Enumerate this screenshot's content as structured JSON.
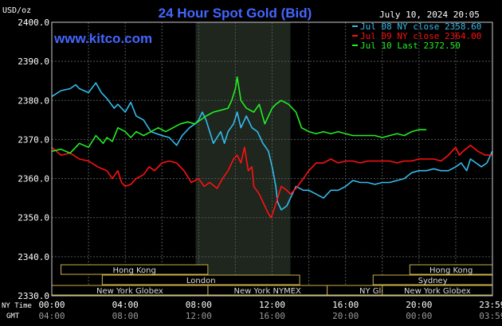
{
  "chart_data": {
    "type": "line",
    "title": "24 Hour Spot Gold (Bid)",
    "subtitle": "www.kitco.com",
    "timestamp": "July 10, 2024 20:05",
    "ylabel": "USD/oz",
    "ylim": [
      2330,
      2400
    ],
    "y_ticks": [
      "2330.0",
      "2340.0",
      "2350.0",
      "2360.0",
      "2370.0",
      "2380.0",
      "2390.0",
      "2400.0"
    ],
    "x_range": [
      0,
      24
    ],
    "ny_time_label": "NY Time",
    "gmt_label": "GMT",
    "x_ticks_ny": [
      "00:00",
      "04:00",
      "08:00",
      "12:00",
      "16:00",
      "20:00",
      "23:59"
    ],
    "x_ticks_gmt": [
      "04:00",
      "08:00",
      "12:00",
      "16:00",
      "20:00",
      "00:00",
      "03:59"
    ],
    "grid": true,
    "shaded_session": [
      7.833,
      13.0
    ],
    "legend_position": "top-right",
    "series": [
      {
        "name": "Jul 08 NY close 2358.60",
        "color": "#33bbee",
        "points": [
          [
            0,
            2381
          ],
          [
            0.5,
            2382.5
          ],
          [
            1,
            2383
          ],
          [
            1.3,
            2384
          ],
          [
            1.5,
            2383
          ],
          [
            2,
            2382
          ],
          [
            2.4,
            2384.5
          ],
          [
            2.7,
            2382
          ],
          [
            3,
            2380.5
          ],
          [
            3.4,
            2378
          ],
          [
            3.6,
            2379
          ],
          [
            4,
            2377
          ],
          [
            4.3,
            2379.5
          ],
          [
            4.6,
            2376
          ],
          [
            5,
            2375
          ],
          [
            5.4,
            2372
          ],
          [
            6,
            2371
          ],
          [
            6.4,
            2370.5
          ],
          [
            6.8,
            2368.5
          ],
          [
            7.1,
            2371
          ],
          [
            7.5,
            2373
          ],
          [
            7.8,
            2374
          ],
          [
            8,
            2375
          ],
          [
            8.2,
            2377
          ],
          [
            8.4,
            2375
          ],
          [
            8.6,
            2372
          ],
          [
            8.8,
            2369
          ],
          [
            9.2,
            2372
          ],
          [
            9.4,
            2369
          ],
          [
            9.6,
            2372
          ],
          [
            9.9,
            2374
          ],
          [
            10.1,
            2377
          ],
          [
            10.3,
            2373
          ],
          [
            10.6,
            2376
          ],
          [
            10.9,
            2373
          ],
          [
            11.2,
            2372
          ],
          [
            11.5,
            2369
          ],
          [
            11.8,
            2367
          ],
          [
            12,
            2363
          ],
          [
            12.2,
            2358
          ],
          [
            12.3,
            2354
          ],
          [
            12.5,
            2352
          ],
          [
            12.8,
            2353
          ],
          [
            13,
            2355
          ],
          [
            13.3,
            2358
          ],
          [
            13.7,
            2357
          ],
          [
            14,
            2357
          ],
          [
            14.4,
            2356
          ],
          [
            14.8,
            2355
          ],
          [
            15.2,
            2357
          ],
          [
            15.6,
            2357
          ],
          [
            16,
            2358
          ],
          [
            16.4,
            2359.5
          ],
          [
            16.8,
            2359
          ],
          [
            17.2,
            2359
          ],
          [
            17.6,
            2358.5
          ],
          [
            18,
            2359
          ],
          [
            18.4,
            2359
          ],
          [
            18.8,
            2359.5
          ],
          [
            19.2,
            2360
          ],
          [
            19.6,
            2361.5
          ],
          [
            20,
            2362
          ],
          [
            20.4,
            2362
          ],
          [
            20.8,
            2362.5
          ],
          [
            21.2,
            2362
          ],
          [
            21.6,
            2362
          ],
          [
            22,
            2363
          ],
          [
            22.3,
            2364
          ],
          [
            22.6,
            2362
          ],
          [
            22.8,
            2365
          ],
          [
            23.1,
            2364
          ],
          [
            23.4,
            2363
          ],
          [
            23.7,
            2364
          ],
          [
            23.99,
            2367
          ]
        ]
      },
      {
        "name": "Jul 09 NY close 2364.00",
        "color": "#ff1111",
        "points": [
          [
            0,
            2368
          ],
          [
            0.5,
            2366
          ],
          [
            1,
            2366.5
          ],
          [
            1.5,
            2365
          ],
          [
            2,
            2364.5
          ],
          [
            2.5,
            2363
          ],
          [
            3,
            2362
          ],
          [
            3.3,
            2360
          ],
          [
            3.6,
            2362
          ],
          [
            3.8,
            2359
          ],
          [
            4,
            2358
          ],
          [
            4.3,
            2358.5
          ],
          [
            4.6,
            2360
          ],
          [
            5,
            2361
          ],
          [
            5.3,
            2363
          ],
          [
            5.6,
            2362
          ],
          [
            6,
            2364
          ],
          [
            6.4,
            2364.5
          ],
          [
            6.8,
            2364
          ],
          [
            7.2,
            2362
          ],
          [
            7.6,
            2359
          ],
          [
            8,
            2360
          ],
          [
            8.3,
            2358
          ],
          [
            8.6,
            2359
          ],
          [
            9,
            2357.5
          ],
          [
            9.3,
            2360
          ],
          [
            9.6,
            2362
          ],
          [
            9.9,
            2365
          ],
          [
            10.1,
            2366
          ],
          [
            10.3,
            2364
          ],
          [
            10.5,
            2368
          ],
          [
            10.7,
            2362
          ],
          [
            10.9,
            2363
          ],
          [
            11,
            2358
          ],
          [
            11.3,
            2356
          ],
          [
            11.6,
            2353
          ],
          [
            11.8,
            2351
          ],
          [
            11.95,
            2350
          ],
          [
            12.1,
            2352
          ],
          [
            12.3,
            2355
          ],
          [
            12.5,
            2358
          ],
          [
            12.8,
            2357
          ],
          [
            13,
            2356
          ],
          [
            13.3,
            2357.5
          ],
          [
            13.7,
            2360
          ],
          [
            14,
            2362
          ],
          [
            14.4,
            2364
          ],
          [
            14.8,
            2364
          ],
          [
            15.2,
            2365
          ],
          [
            15.6,
            2364
          ],
          [
            16,
            2364.5
          ],
          [
            16.4,
            2364.5
          ],
          [
            16.8,
            2364
          ],
          [
            17.2,
            2364.5
          ],
          [
            17.6,
            2364.5
          ],
          [
            18,
            2364.5
          ],
          [
            18.4,
            2364.5
          ],
          [
            18.8,
            2364
          ],
          [
            19.2,
            2364.5
          ],
          [
            19.6,
            2364.5
          ],
          [
            20,
            2365
          ],
          [
            20.4,
            2365
          ],
          [
            20.8,
            2365
          ],
          [
            21.2,
            2364.5
          ],
          [
            21.6,
            2366
          ],
          [
            22,
            2368
          ],
          [
            22.2,
            2366
          ],
          [
            22.4,
            2367
          ],
          [
            22.8,
            2368.5
          ],
          [
            23.2,
            2367
          ],
          [
            23.6,
            2366
          ],
          [
            23.99,
            2366
          ]
        ]
      },
      {
        "name": "Jul 10 Last 2372.50",
        "color": "#22ee22",
        "points": [
          [
            0,
            2367
          ],
          [
            0.5,
            2367.5
          ],
          [
            1,
            2366.5
          ],
          [
            1.5,
            2369
          ],
          [
            2,
            2368
          ],
          [
            2.4,
            2371
          ],
          [
            2.8,
            2369
          ],
          [
            3,
            2370.5
          ],
          [
            3.3,
            2369.5
          ],
          [
            3.6,
            2373
          ],
          [
            4,
            2372
          ],
          [
            4.3,
            2370.5
          ],
          [
            4.6,
            2372
          ],
          [
            5,
            2371
          ],
          [
            5.4,
            2372
          ],
          [
            5.8,
            2373
          ],
          [
            6.2,
            2372
          ],
          [
            6.6,
            2373
          ],
          [
            7,
            2374
          ],
          [
            7.4,
            2374.5
          ],
          [
            7.8,
            2374
          ],
          [
            8.1,
            2375
          ],
          [
            8.4,
            2376
          ],
          [
            8.8,
            2377
          ],
          [
            9.2,
            2377.5
          ],
          [
            9.6,
            2378
          ],
          [
            9.8,
            2380
          ],
          [
            10,
            2383
          ],
          [
            10.1,
            2386
          ],
          [
            10.3,
            2380
          ],
          [
            10.6,
            2378
          ],
          [
            11,
            2377
          ],
          [
            11.3,
            2379
          ],
          [
            11.6,
            2374
          ],
          [
            11.8,
            2376
          ],
          [
            12,
            2378
          ],
          [
            12.2,
            2379
          ],
          [
            12.5,
            2380
          ],
          [
            12.9,
            2379
          ],
          [
            13.3,
            2377
          ],
          [
            13.6,
            2373
          ],
          [
            14,
            2372
          ],
          [
            14.4,
            2371.5
          ],
          [
            14.8,
            2372
          ],
          [
            15.2,
            2371.5
          ],
          [
            15.6,
            2372
          ],
          [
            16,
            2371.5
          ],
          [
            16.4,
            2371
          ],
          [
            16.8,
            2371
          ],
          [
            17.2,
            2371
          ],
          [
            17.6,
            2371
          ],
          [
            18,
            2370.5
          ],
          [
            18.4,
            2371
          ],
          [
            18.8,
            2371.5
          ],
          [
            19.2,
            2371
          ],
          [
            19.6,
            2372
          ],
          [
            20,
            2372.5
          ],
          [
            20.4,
            2372.5
          ]
        ]
      }
    ],
    "market_sessions": [
      {
        "label": "Hong Kong",
        "start": 0.5,
        "end": 8.5,
        "row": 0
      },
      {
        "label": "London",
        "start": 2.75,
        "end": 13.5,
        "row": 1
      },
      {
        "label": "New York NYMEX",
        "start": 8.5,
        "end": 15.0,
        "row": 2
      },
      {
        "label": "New York Globex",
        "start": 0.0,
        "end": 8.5,
        "row": 2
      },
      {
        "label": "NY Globex",
        "start": 15.0,
        "end": 20.75,
        "row": 2
      },
      {
        "label": "Hong Kong",
        "start": 19.5,
        "end": 24.0,
        "row": 0
      },
      {
        "label": "Sydney",
        "start": 17.5,
        "end": 24.0,
        "row": 1
      },
      {
        "label": "New York Globex",
        "start": 18.0,
        "end": 24.0,
        "row": 2
      }
    ]
  }
}
